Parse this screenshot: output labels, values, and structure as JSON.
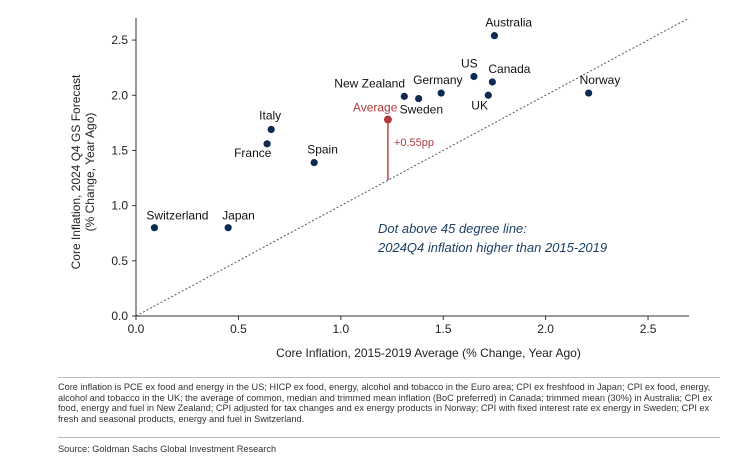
{
  "chart_data": {
    "type": "scatter",
    "xlabel": "Core Inflation, 2015-2019 Average (% Change, Year Ago)",
    "ylabel_line1": "Core Inflation, 2024 Q4 GS Forecast",
    "ylabel_line2": "(% Change, Year Ago)",
    "xlim": [
      0,
      2.7
    ],
    "ylim": [
      0,
      2.7
    ],
    "xticks": [
      0.0,
      0.5,
      1.0,
      1.5,
      2.0,
      2.5
    ],
    "xtick_labels": [
      "0.0",
      "0.5",
      "1.0",
      "1.5",
      "2.0",
      "2.5"
    ],
    "yticks": [
      0.0,
      0.5,
      1.0,
      1.5,
      2.0,
      2.5
    ],
    "ytick_labels": [
      "0.0",
      "0.5",
      "1.0",
      "1.5",
      "2.0",
      "2.5"
    ],
    "points": [
      {
        "label": "Switzerland",
        "x": 0.09,
        "y": 0.8
      },
      {
        "label": "Japan",
        "x": 0.45,
        "y": 0.8
      },
      {
        "label": "France",
        "x": 0.64,
        "y": 1.56
      },
      {
        "label": "Italy",
        "x": 0.66,
        "y": 1.69
      },
      {
        "label": "Spain",
        "x": 0.87,
        "y": 1.39
      },
      {
        "label": "New Zealand",
        "x": 1.31,
        "y": 1.99
      },
      {
        "label": "Sweden",
        "x": 1.38,
        "y": 1.97
      },
      {
        "label": "Germany",
        "x": 1.49,
        "y": 2.02
      },
      {
        "label": "US",
        "x": 1.65,
        "y": 2.17
      },
      {
        "label": "UK",
        "x": 1.72,
        "y": 2.0
      },
      {
        "label": "Canada",
        "x": 1.74,
        "y": 2.12
      },
      {
        "label": "Australia",
        "x": 1.75,
        "y": 2.54
      },
      {
        "label": "Norway",
        "x": 2.21,
        "y": 2.02
      }
    ],
    "average": {
      "label": "Average",
      "x": 1.23,
      "y": 1.78
    },
    "average_gap_label": "+0.55pp",
    "reference_line": "45 degree",
    "annotation_line1": "Dot above 45 degree line:",
    "annotation_line2": "2024Q4 inflation higher than 2015-2019",
    "colors": {
      "points": "#0d2b52",
      "average": "#b23a3a",
      "annotation": "#1c3f63",
      "axis": "#333333"
    }
  },
  "footnote": "Core inflation is PCE ex food and energy in the US; HICP ex food, energy, alcohol and tobacco in the Euro area; CPI ex freshfood in Japan; CPI ex food, energy, alcohol and tobacco in the UK; the average of common, median and trimmed mean inflation (BoC preferred) in Canada; trimmed mean (30%) in Australia; CPI ex food, energy and fuel in New Zealand; CPI adjusted for tax changes and ex energy products in Norway; CPI with fixed interest rate ex energy in Sweden; CPI ex fresh and seasonal products, energy and fuel in Switzerland.",
  "source": "Source: Goldman Sachs Global Investment Research"
}
